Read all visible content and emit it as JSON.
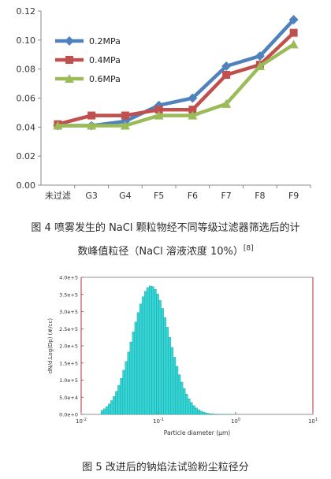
{
  "figure4": {
    "caption_line1": "图 4 喷雾发生的 NaCl 颗粒物经不同等级过滤器筛选后的计",
    "caption_line2": "数峰值粒径（NaCl 溶液浓度 10%）",
    "caption_ref": "[8]"
  },
  "figure5": {
    "caption": "图 5 改进后的钠焰法试验粉尘粒径分"
  },
  "chart_data": [
    {
      "type": "line",
      "title": "",
      "xlabel": "",
      "ylabel": "",
      "categories": [
        "未过滤",
        "G3",
        "G4",
        "F5",
        "F6",
        "F7",
        "F8",
        "F9"
      ],
      "ylim": [
        0,
        0.12
      ],
      "yticks": [
        "0.00",
        "0.02",
        "0.04",
        "0.06",
        "0.08",
        "0.10",
        "0.12"
      ],
      "legend_position": "top-left",
      "grid": false,
      "series": [
        {
          "name": "0.2MPa",
          "color": "#4f81bd",
          "marker": "diamond",
          "values": [
            0.041,
            0.041,
            0.044,
            0.055,
            0.06,
            0.082,
            0.089,
            0.114
          ]
        },
        {
          "name": "0.4MPa",
          "color": "#c0504d",
          "marker": "square",
          "values": [
            0.042,
            0.048,
            0.048,
            0.052,
            0.052,
            0.076,
            0.083,
            0.105
          ]
        },
        {
          "name": "0.6MPa",
          "color": "#9bbb59",
          "marker": "triangle",
          "values": [
            0.041,
            0.041,
            0.041,
            0.048,
            0.048,
            0.056,
            0.082,
            0.097
          ]
        }
      ]
    },
    {
      "type": "bar",
      "title": "",
      "xlabel": "Particle diameter (µm)",
      "ylabel": "dN/d.Log(Dp) (#/cc)",
      "xscale": "log",
      "xlim": [
        0.01,
        10
      ],
      "xticks": [
        "10",
        "10",
        "10",
        "10"
      ],
      "xtick_exponents": [
        "-2",
        "-1",
        "0",
        "1"
      ],
      "ylim": [
        0,
        400000
      ],
      "yticks": [
        "0.0e+0",
        "5.0e+4",
        "1.0e+5",
        "1.5e+5",
        "2.0e+5",
        "2.5e+5",
        "3.0e+5",
        "3.5e+5",
        "4.0e+5"
      ],
      "bar_color": "#33d6d6",
      "vlines_x": [
        0.01,
        10
      ],
      "vline_color": "#b03030",
      "distribution": {
        "peak_x": 0.08,
        "peak_y": 375000,
        "log_sigma": 0.24,
        "bins_per_decade": 32,
        "x_min": 0.018,
        "x_max": 0.9
      }
    }
  ]
}
